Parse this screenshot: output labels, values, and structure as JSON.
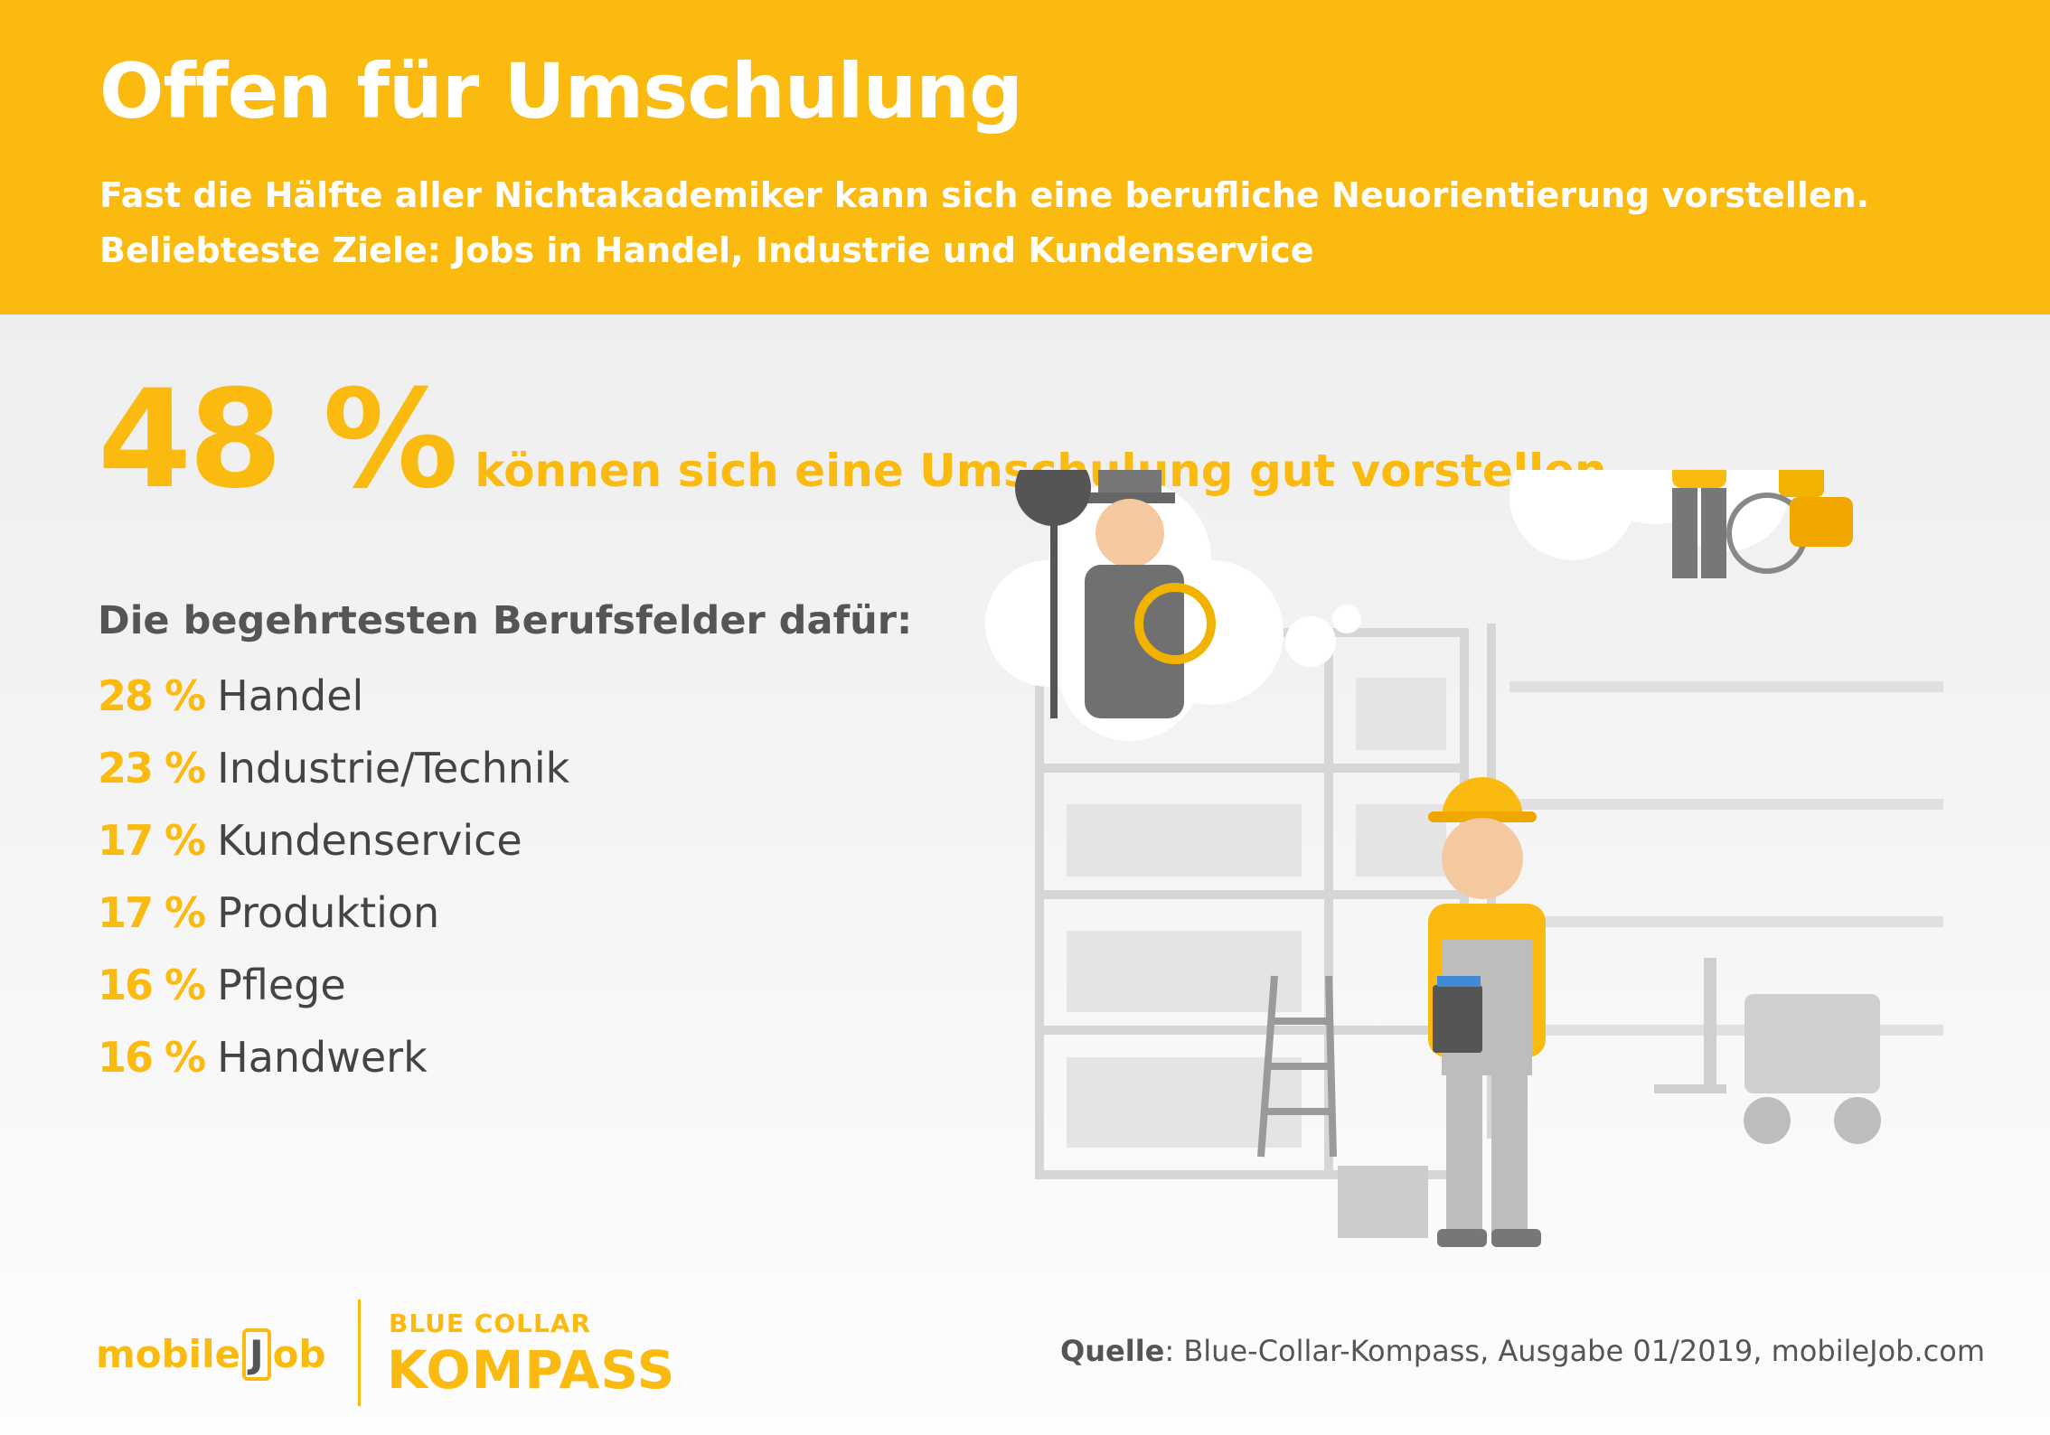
{
  "header": {
    "title": "Offen für Umschulung",
    "subtitle_line1": "Fast die Hälfte aller Nichtakademiker kann sich eine berufliche Neuorientierung vorstellen.",
    "subtitle_line2": "Beliebteste Ziele: Jobs in Handel, Industrie und Kundenservice"
  },
  "headline_stat": {
    "value": "48 %",
    "text": "können sich eine Umschulung gut vorstellen."
  },
  "chart_data": {
    "type": "table",
    "title": "Die begehrtesten Berufsfelder dafür:",
    "categories": [
      "Handel",
      "Industrie/Technik",
      "Kundenservice",
      "Produktion",
      "Pflege",
      "Handwerk"
    ],
    "values": [
      28,
      23,
      17,
      17,
      16,
      16
    ],
    "value_labels": [
      "28 %",
      "23 %",
      "17 %",
      "17 %",
      "16 %",
      "16 %"
    ]
  },
  "footer": {
    "logo_left_a": "mobile",
    "logo_left_b": "J",
    "logo_left_c": "ob",
    "logo_right_top": "BLUE COLLAR",
    "logo_right_main": "KOMPASS",
    "source_label": "Quelle",
    "source_text": ": Blue-Collar-Kompass, Ausgabe 01/2019, mobileJob.com"
  },
  "colors": {
    "accent": "#fbba0f",
    "text_dark": "#555555",
    "illustration_gray": "#d8d8d8"
  }
}
